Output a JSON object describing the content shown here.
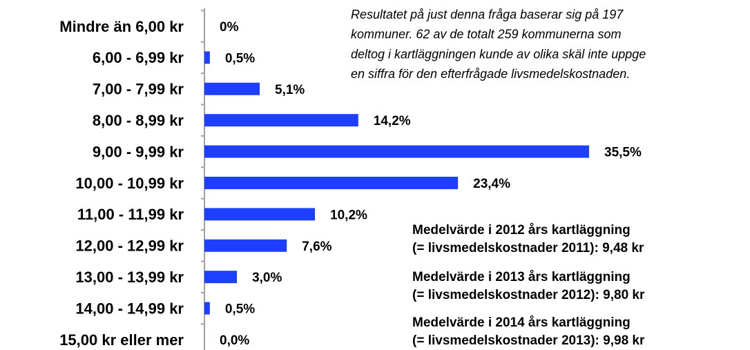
{
  "chart_data": {
    "type": "bar",
    "orientation": "horizontal",
    "categories": [
      "Mindre än 6,00 kr",
      "6,00 - 6,99 kr",
      "7,00 - 7,99 kr",
      "8,00 - 8,99 kr",
      "9,00 - 9,99 kr",
      "10,00 - 10,99 kr",
      "11,00 - 11,99 kr",
      "12,00 - 12,99 kr",
      "13,00 - 13,99 kr",
      "14,00 - 14,99 kr",
      "15,00 kr eller mer"
    ],
    "values": [
      0,
      0.5,
      5.1,
      14.2,
      35.5,
      23.4,
      10.2,
      7.6,
      3.0,
      0.5,
      0.0
    ],
    "value_labels": [
      "0%",
      "0,5%",
      "5,1%",
      "14,2%",
      "35,5%",
      "23,4%",
      "10,2%",
      "7,6%",
      "3,0%",
      "0,5%",
      "0,0%"
    ],
    "color": "#1f3fff",
    "note": [
      "Resultatet på just denna fråga baserar sig på 197",
      "kommuner. 62 av de totalt 259 kommunerna som",
      "deltog i kartläggningen kunde av olika skäl inte uppge",
      "en siffra för den efterfrågade livsmedelskostnaden."
    ],
    "means": [
      [
        "Medelvärde i 2012 års kartläggning",
        "(= livsmedelskostnader 2011): 9,48 kr"
      ],
      [
        "Medelvärde i 2013 års kartläggning",
        "(= livsmedelskostnader 2012): 9,80 kr"
      ],
      [
        "Medelvärde i 2014 års kartläggning",
        "(= livsmedelskostnader 2013): 9,98 kr"
      ]
    ]
  }
}
